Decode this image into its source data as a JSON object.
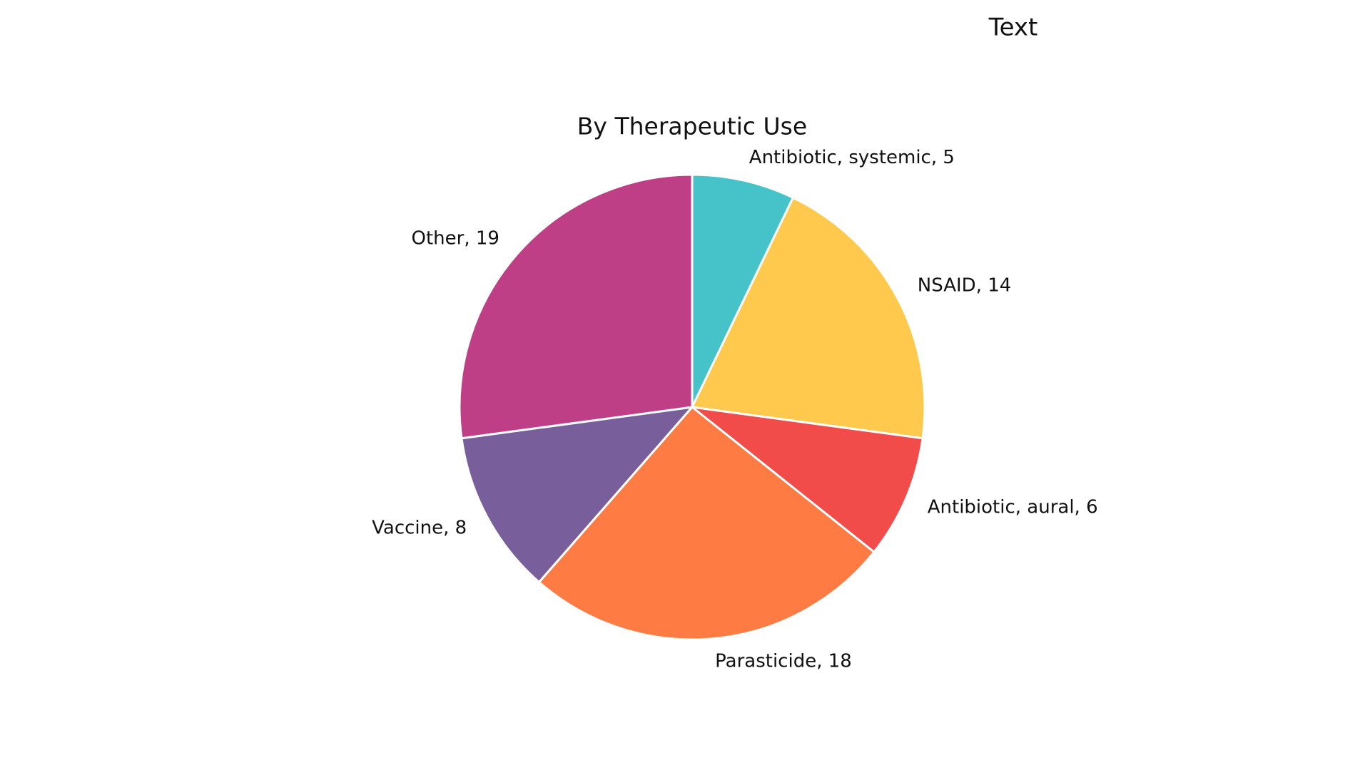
{
  "chart_data": {
    "type": "pie",
    "title": "By Therapeutic Use",
    "annotation": "Text",
    "values": [
      5,
      14,
      6,
      18,
      8,
      19
    ],
    "value_labels": [
      "Antibiotic,  systemic, 5",
      "NSAID, 14",
      "Antibiotic,  aural, 6",
      "Parasticide, 18",
      "Vaccine, 8",
      "Other, 19"
    ],
    "colors": [
      "#45c3c9",
      "#fec94d",
      "#f24c4a",
      "#fe7b43",
      "#785f9c",
      "#bf3f86"
    ]
  }
}
